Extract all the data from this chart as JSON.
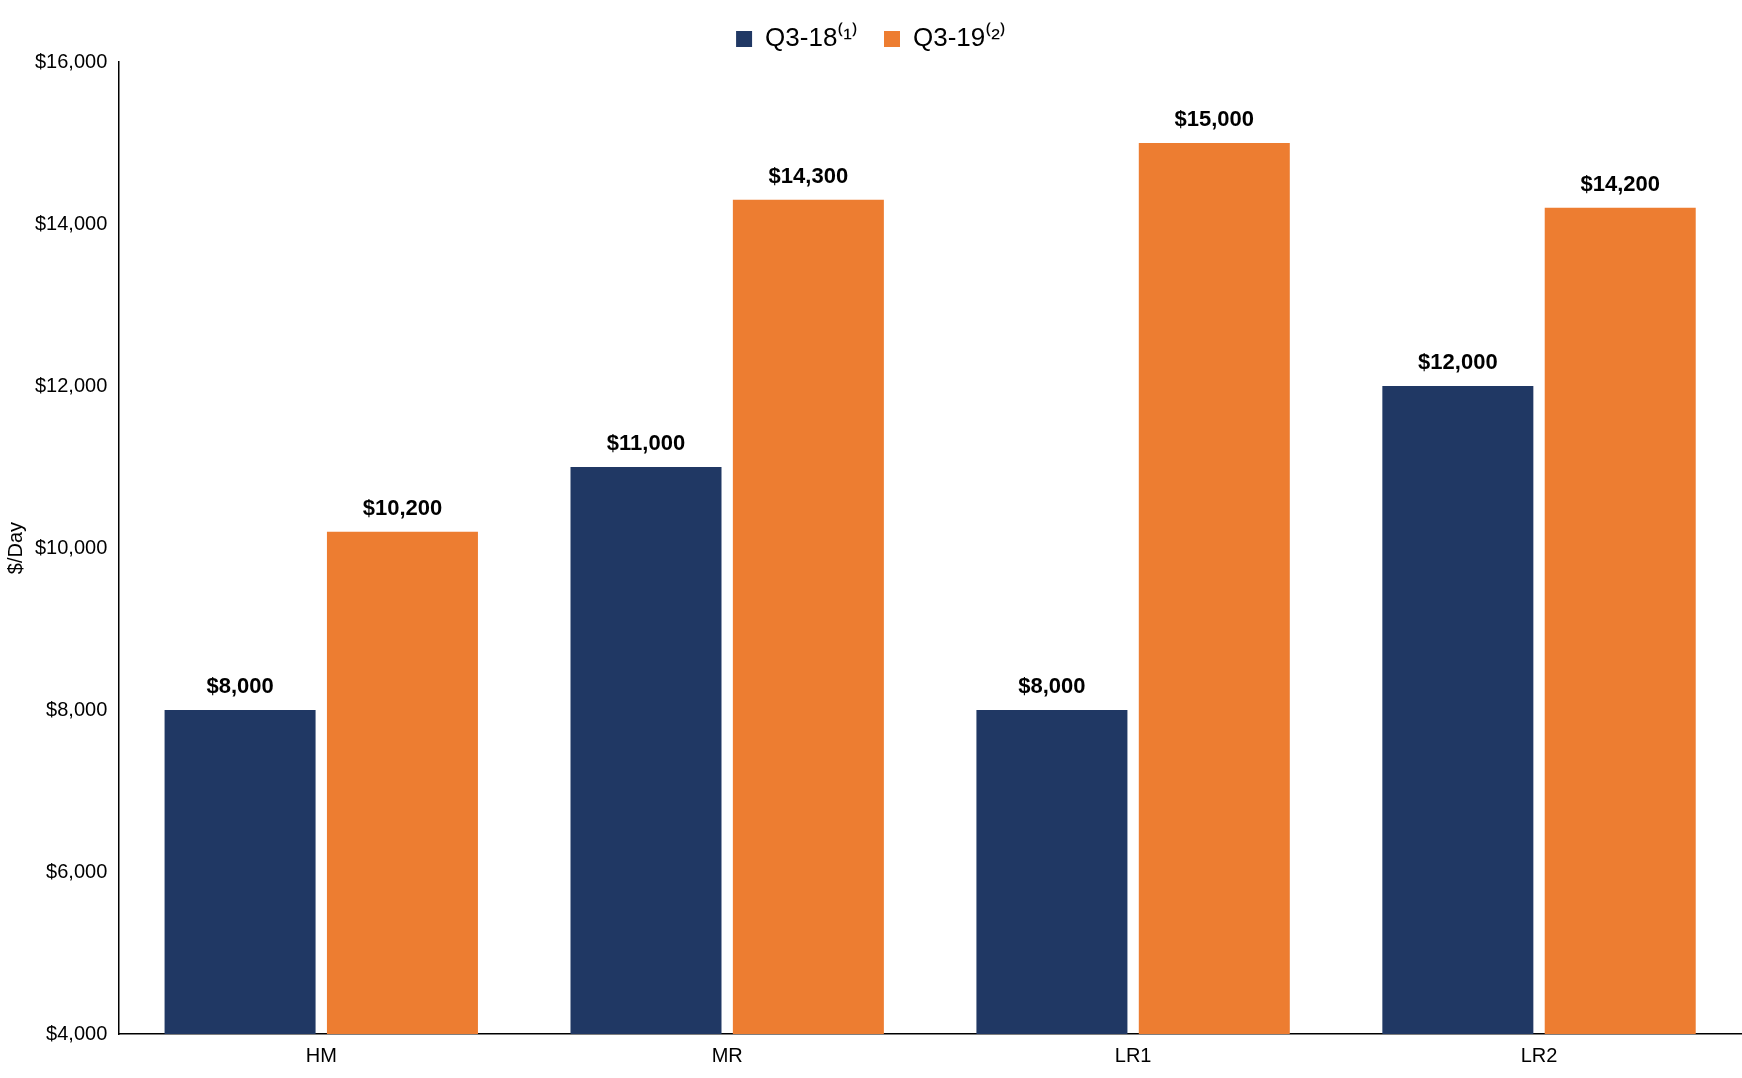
{
  "chart_data": {
    "type": "bar",
    "ylabel": "$/Day",
    "categories": [
      "HM",
      "MR",
      "LR1",
      "LR2"
    ],
    "series": [
      {
        "name": "Q3-18⁽¹⁾",
        "color": "#203864",
        "values": [
          8000,
          11000,
          8000,
          12000
        ],
        "value_labels": [
          "$8,000",
          "$11,000",
          "$8,000",
          "$12,000"
        ]
      },
      {
        "name": "Q3-19⁽²⁾",
        "color": "#ed7d31",
        "values": [
          10200,
          14300,
          15000,
          14200
        ],
        "value_labels": [
          "$10,200",
          "$14,300",
          "$15,000",
          "$14,200"
        ]
      }
    ],
    "ylim": [
      4000,
      16000
    ],
    "yticks": [
      {
        "value": 4000,
        "label": "$4,000"
      },
      {
        "value": 6000,
        "label": "$6,000"
      },
      {
        "value": 8000,
        "label": "$8,000"
      },
      {
        "value": 10000,
        "label": "$10,000"
      },
      {
        "value": 12000,
        "label": "$12,000"
      },
      {
        "value": 14000,
        "label": "$14,000"
      },
      {
        "value": 16000,
        "label": "$16,000"
      }
    ],
    "grid": false,
    "legend": "top"
  }
}
